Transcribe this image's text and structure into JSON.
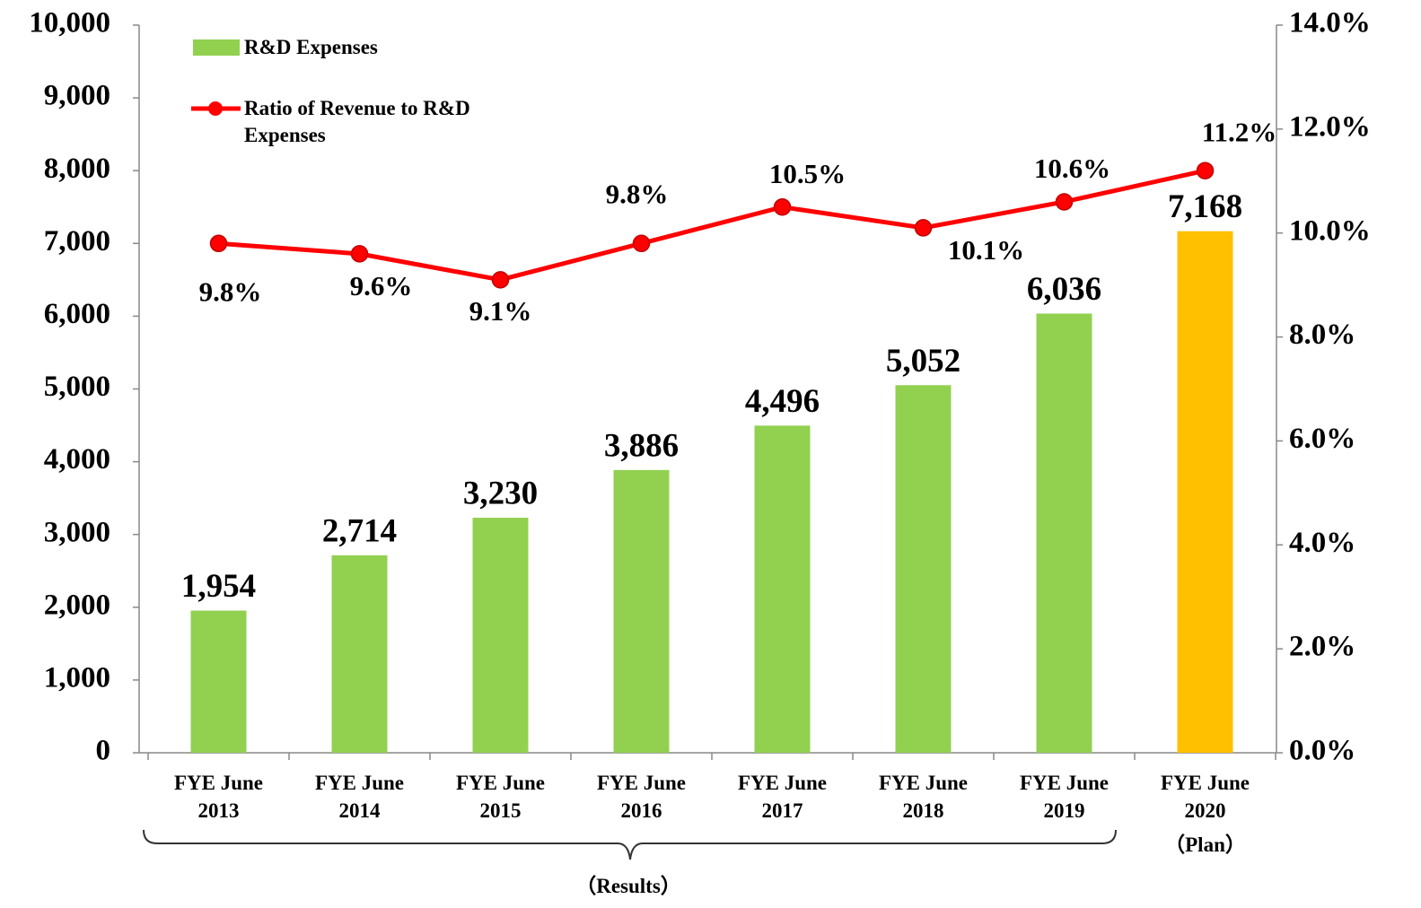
{
  "chart_data": {
    "type": "bar-line",
    "categories": [
      "FYE June 2013",
      "FYE June 2014",
      "FYE June 2015",
      "FYE June 2016",
      "FYE June 2017",
      "FYE June 2018",
      "FYE June 2019",
      "FYE June 2020"
    ],
    "series": [
      {
        "name": "R&D Expenses",
        "type": "bar",
        "color": "#92d050",
        "colors": [
          "#92d050",
          "#92d050",
          "#92d050",
          "#92d050",
          "#92d050",
          "#92d050",
          "#92d050",
          "#ffc000"
        ],
        "values": [
          1954,
          2714,
          3230,
          3886,
          4496,
          5052,
          6036,
          7168
        ],
        "value_labels": [
          "1,954",
          "2,714",
          "3,230",
          "3,886",
          "4,496",
          "5,052",
          "6,036",
          "7,168"
        ]
      },
      {
        "name": "Ratio of Revenue to R&D Expenses",
        "type": "line",
        "axis": "y2",
        "color": "#ff0000",
        "values": [
          9.8,
          9.6,
          9.1,
          9.8,
          10.5,
          10.1,
          10.6,
          11.2
        ],
        "value_labels": [
          "9.8%",
          "9.6%",
          "9.1%",
          "9.8%",
          "10.5%",
          "10.1%",
          "10.6%",
          "11.2%"
        ]
      }
    ],
    "annotations": [
      "（Plan）",
      "（Results）"
    ],
    "ylim": [
      0,
      10000
    ],
    "yticks": [
      0,
      {
        "value": 1000,
        "label": "1,000"
      },
      {
        "value": 2000,
        "label": "2,000"
      },
      {
        "value": 3000,
        "label": "3,000"
      },
      {
        "value": 4000,
        "label": "4,000"
      },
      {
        "value": 5000,
        "label": "5,000"
      },
      {
        "value": 6000,
        "label": "6,000"
      },
      {
        "value": 7000,
        "label": "7,000"
      },
      {
        "value": 8000,
        "label": "8,000"
      },
      {
        "value": 9000,
        "label": "9,000"
      },
      {
        "value": 10000,
        "label": "10,000"
      }
    ],
    "y2lim": [
      0,
      14
    ],
    "y2ticks": [
      {
        "value": 0,
        "label": "0.0%"
      },
      {
        "value": 2,
        "label": "2.0%"
      },
      {
        "value": 4,
        "label": "4.0%"
      },
      {
        "value": 6,
        "label": "6.0%"
      },
      {
        "value": 8,
        "label": "8.0%"
      },
      {
        "value": 10,
        "label": "10.0%"
      },
      {
        "value": 12,
        "label": "12.0%"
      },
      {
        "value": 14,
        "label": "14.0%"
      }
    ],
    "legend": "top-left",
    "grid": false
  }
}
